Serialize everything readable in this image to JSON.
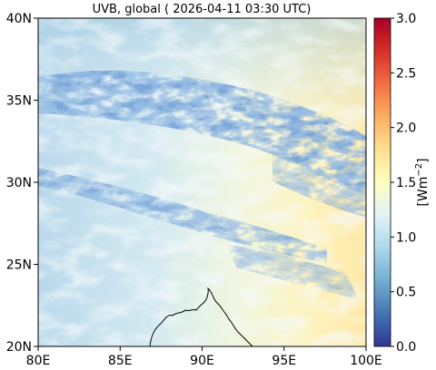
{
  "map": {
    "title": "UVB, global ( 2026-04-11 03:30 UTC)",
    "lon_range": [
      80,
      100
    ],
    "lat_range": [
      20,
      40
    ],
    "x_ticks": [
      {
        "value": 80,
        "label": "80E"
      },
      {
        "value": 85,
        "label": "85E"
      },
      {
        "value": 90,
        "label": "90E"
      },
      {
        "value": 95,
        "label": "95E"
      },
      {
        "value": 100,
        "label": "100E"
      }
    ],
    "y_ticks": [
      {
        "value": 20,
        "label": "20N"
      },
      {
        "value": 25,
        "label": "25N"
      },
      {
        "value": 30,
        "label": "30N"
      },
      {
        "value": 35,
        "label": "35N"
      },
      {
        "value": 40,
        "label": "40N"
      }
    ]
  },
  "colorbar": {
    "label": "[Wm",
    "label_sup": "−2",
    "label_end": "]",
    "range": [
      0.0,
      3.0
    ],
    "colormap": "RdYlBu_r",
    "colors": [
      "#313695",
      "#4575b4",
      "#74add1",
      "#abd9e9",
      "#e0f3f8",
      "#ffffbf",
      "#fee090",
      "#fdae61",
      "#f46d43",
      "#d73027",
      "#a50026"
    ],
    "ticks": [
      {
        "value": 0.0,
        "label": "0.0"
      },
      {
        "value": 0.5,
        "label": "0.5"
      },
      {
        "value": 1.0,
        "label": "1.0"
      },
      {
        "value": 1.5,
        "label": "1.5"
      },
      {
        "value": 2.0,
        "label": "2.0"
      },
      {
        "value": 2.5,
        "label": "2.5"
      },
      {
        "value": 3.0,
        "label": "3.0"
      }
    ]
  }
}
